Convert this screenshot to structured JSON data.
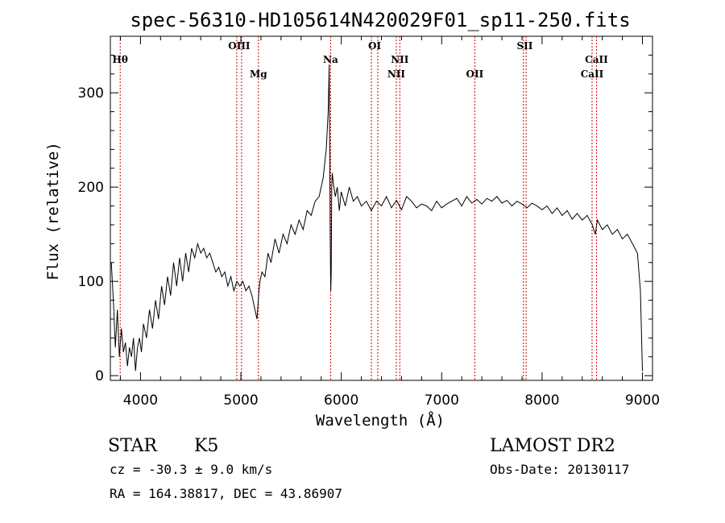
{
  "chart_data": {
    "type": "line",
    "title": "spec-56310-HD105614N420029F01_sp11-250.fits",
    "xlabel": "Wavelength (Å)",
    "ylabel": "Flux (relative)",
    "xlim": [
      3700,
      9100
    ],
    "ylim": [
      -5,
      360
    ],
    "x_ticks": [
      4000,
      5000,
      6000,
      7000,
      8000,
      9000
    ],
    "y_ticks": [
      0,
      100,
      200,
      300
    ],
    "grid": false,
    "line_color": "#000000",
    "marker_color": "#cc0000",
    "spectrum": {
      "x": [
        3710,
        3730,
        3750,
        3770,
        3790,
        3810,
        3830,
        3850,
        3870,
        3890,
        3910,
        3930,
        3950,
        3970,
        3990,
        4010,
        4030,
        4060,
        4090,
        4120,
        4150,
        4180,
        4210,
        4240,
        4270,
        4300,
        4330,
        4360,
        4390,
        4420,
        4450,
        4480,
        4510,
        4540,
        4570,
        4600,
        4630,
        4660,
        4690,
        4720,
        4750,
        4780,
        4810,
        4840,
        4870,
        4900,
        4930,
        4960,
        4990,
        5020,
        5050,
        5080,
        5110,
        5140,
        5160,
        5170,
        5180,
        5190,
        5210,
        5240,
        5270,
        5300,
        5340,
        5380,
        5420,
        5460,
        5500,
        5540,
        5580,
        5620,
        5660,
        5700,
        5740,
        5780,
        5820,
        5850,
        5870,
        5880,
        5890,
        5895,
        5900,
        5905,
        5910,
        5920,
        5940,
        5960,
        5980,
        6000,
        6040,
        6080,
        6120,
        6160,
        6200,
        6250,
        6300,
        6350,
        6400,
        6450,
        6500,
        6550,
        6600,
        6650,
        6700,
        6750,
        6800,
        6850,
        6900,
        6950,
        7000,
        7050,
        7100,
        7150,
        7200,
        7250,
        7300,
        7350,
        7400,
        7450,
        7500,
        7550,
        7600,
        7650,
        7700,
        7750,
        7800,
        7850,
        7900,
        7950,
        8000,
        8050,
        8100,
        8150,
        8200,
        8250,
        8300,
        8350,
        8400,
        8450,
        8500,
        8530,
        8550,
        8600,
        8650,
        8700,
        8750,
        8800,
        8850,
        8900,
        8950,
        8980,
        9000
      ],
      "y": [
        120,
        80,
        30,
        70,
        20,
        50,
        25,
        35,
        10,
        30,
        20,
        40,
        5,
        30,
        40,
        25,
        55,
        40,
        70,
        50,
        80,
        60,
        95,
        75,
        105,
        85,
        120,
        95,
        125,
        100,
        130,
        110,
        135,
        125,
        140,
        130,
        135,
        125,
        130,
        120,
        110,
        115,
        105,
        110,
        95,
        105,
        90,
        100,
        95,
        100,
        90,
        95,
        85,
        70,
        60,
        75,
        90,
        100,
        110,
        105,
        130,
        120,
        145,
        130,
        150,
        140,
        160,
        150,
        165,
        155,
        175,
        170,
        185,
        190,
        210,
        240,
        280,
        330,
        150,
        90,
        110,
        200,
        215,
        205,
        190,
        200,
        175,
        195,
        180,
        200,
        185,
        190,
        180,
        185,
        175,
        185,
        180,
        190,
        178,
        186,
        176,
        190,
        185,
        178,
        182,
        180,
        175,
        185,
        178,
        182,
        185,
        188,
        180,
        190,
        183,
        187,
        182,
        188,
        185,
        190,
        183,
        186,
        180,
        185,
        182,
        178,
        183,
        180,
        176,
        180,
        172,
        178,
        170,
        175,
        166,
        172,
        165,
        170,
        160,
        150,
        165,
        155,
        160,
        150,
        155,
        145,
        150,
        140,
        130,
        90,
        5
      ]
    },
    "spectral_lines": [
      {
        "name": "Hθ",
        "x": 3798,
        "row": 1
      },
      {
        "name": "OIII",
        "x": 4959,
        "row": 0
      },
      {
        "name": "OIII",
        "x": 5007,
        "row": 0
      },
      {
        "name": "Mg",
        "x": 5175,
        "row": 2
      },
      {
        "name": "Na",
        "x": 5894,
        "row": 1
      },
      {
        "name": "OI",
        "x": 6300,
        "row": 0
      },
      {
        "name": "OI",
        "x": 6364,
        "row": 0
      },
      {
        "name": "NII",
        "x": 6548,
        "row": 1
      },
      {
        "name": "NII",
        "x": 6583,
        "row": 2
      },
      {
        "name": "OII",
        "x": 7330,
        "row": 2
      },
      {
        "name": "SII",
        "x": 7815,
        "row": 0
      },
      {
        "name": "SII",
        "x": 7841,
        "row": 0
      },
      {
        "name": "CaII",
        "x": 8498,
        "row": 2
      },
      {
        "name": "CaII",
        "x": 8542,
        "row": 1
      }
    ],
    "line_labels": [
      {
        "text": "Hθ",
        "x": 3798,
        "row": 1
      },
      {
        "text": "OIII",
        "x": 4983,
        "row": 0
      },
      {
        "text": "Mg",
        "x": 5175,
        "row": 2
      },
      {
        "text": "Na",
        "x": 5894,
        "row": 1
      },
      {
        "text": "OI",
        "x": 6332,
        "row": 0
      },
      {
        "text": "NII",
        "x": 6583,
        "row": 1
      },
      {
        "text": "NII",
        "x": 6548,
        "row": 2
      },
      {
        "text": "OII",
        "x": 7330,
        "row": 2
      },
      {
        "text": "SII",
        "x": 7828,
        "row": 0
      },
      {
        "text": "CaII",
        "x": 8542,
        "row": 1
      },
      {
        "text": "CaII",
        "x": 8498,
        "row": 2
      }
    ]
  },
  "info": {
    "object_class": "STAR",
    "subclass": "K5",
    "survey": "LAMOST DR2",
    "redshift": "cz = -30.3 ± 9.0 km/s",
    "obs_date": "Obs-Date: 20130117",
    "coords": "RA = 164.38817, DEC =  43.86907"
  }
}
